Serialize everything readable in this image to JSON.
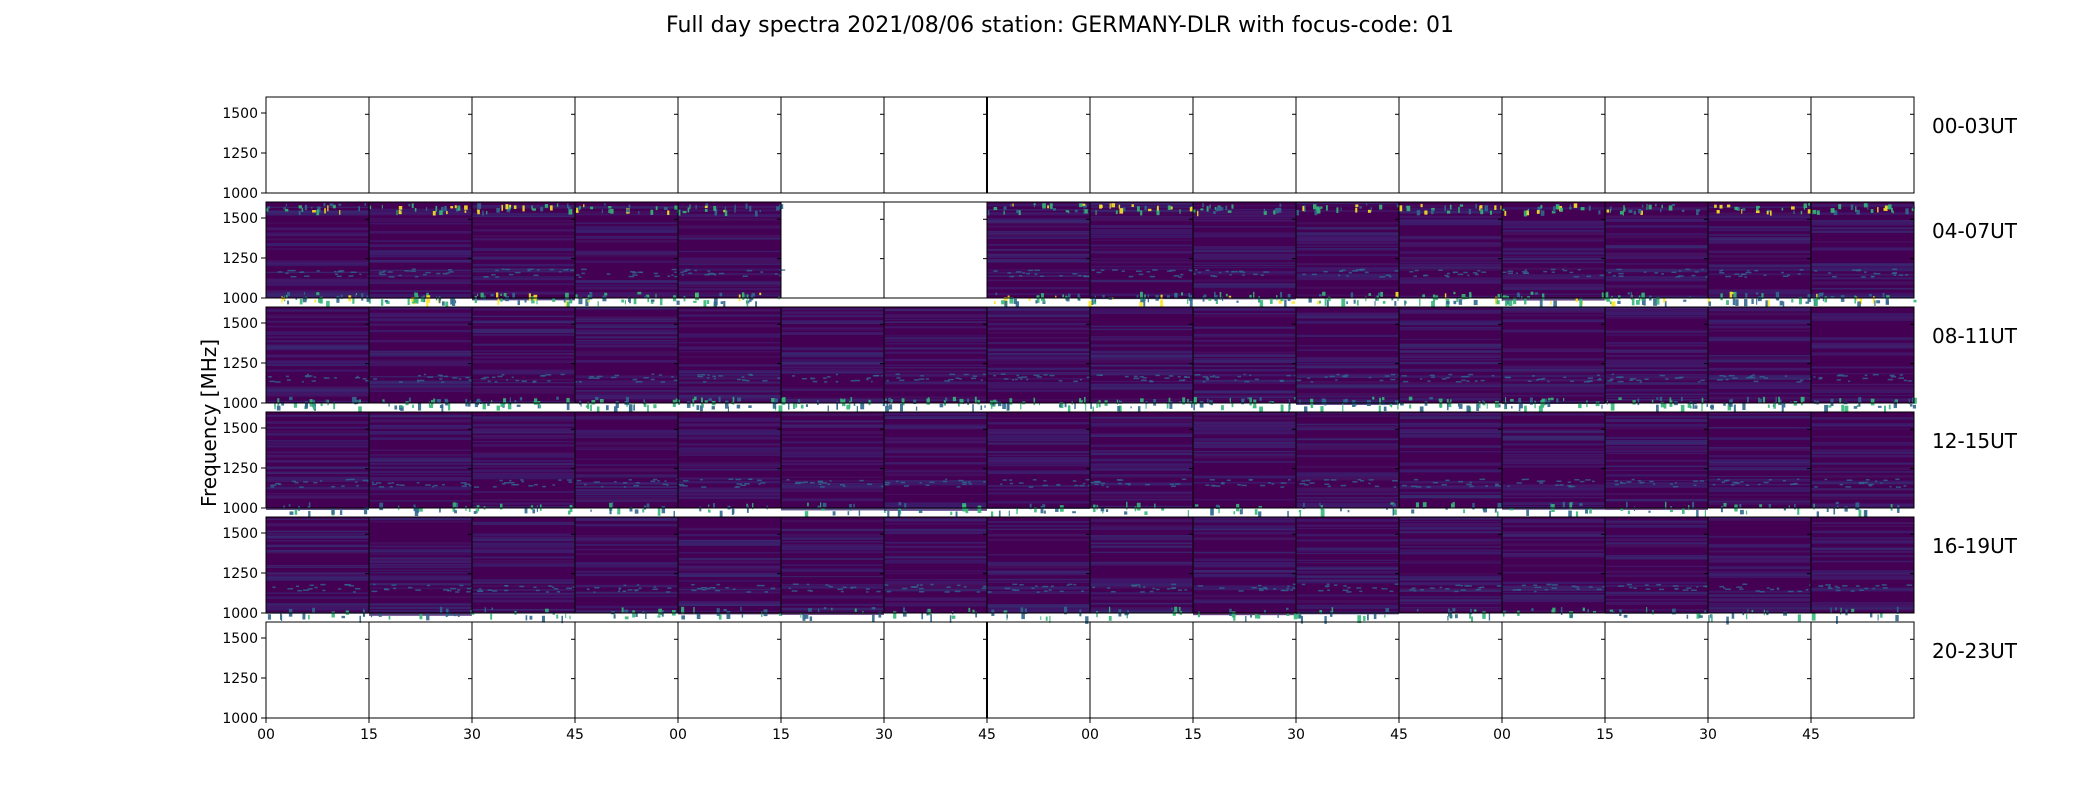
{
  "chart_data": {
    "type": "heatmap",
    "title": "Full day spectra 2021/08/06 station: GERMANY-DLR with focus-code: 01",
    "ylabel": "Frequency [MHz]",
    "xlabel": "",
    "ylim": [
      1000,
      1600
    ],
    "y_ticks": [
      "1000",
      "1250",
      "1500"
    ],
    "y_tick_values": [
      1000,
      1250,
      1500
    ],
    "x_ticks": [
      "00",
      "15",
      "30",
      "45",
      "00",
      "15",
      "30",
      "45",
      "00",
      "15",
      "30",
      "45",
      "00",
      "15",
      "30",
      "45"
    ],
    "panels_per_row": 16,
    "colormap": "viridis",
    "grid": false,
    "rows": [
      {
        "label": "00-03UT",
        "has_data": [
          false,
          false,
          false,
          false,
          false,
          false,
          false,
          false,
          false,
          false,
          false,
          false,
          false,
          false,
          false,
          false
        ]
      },
      {
        "label": "04-07UT",
        "has_data": [
          true,
          true,
          true,
          true,
          true,
          false,
          false,
          true,
          true,
          true,
          true,
          true,
          true,
          true,
          true,
          true
        ]
      },
      {
        "label": "08-11UT",
        "has_data": [
          true,
          true,
          true,
          true,
          true,
          true,
          true,
          true,
          true,
          true,
          true,
          true,
          true,
          true,
          true,
          true
        ]
      },
      {
        "label": "12-15UT",
        "has_data": [
          true,
          true,
          true,
          true,
          true,
          true,
          true,
          true,
          true,
          true,
          true,
          true,
          true,
          true,
          true,
          true
        ]
      },
      {
        "label": "16-19UT",
        "has_data": [
          true,
          true,
          true,
          true,
          true,
          true,
          true,
          true,
          true,
          true,
          true,
          true,
          true,
          true,
          true,
          true
        ]
      },
      {
        "label": "20-23UT",
        "has_data": [
          false,
          false,
          false,
          false,
          false,
          false,
          false,
          false,
          false,
          false,
          false,
          false,
          false,
          false,
          false,
          false
        ]
      }
    ],
    "colors": {
      "background": "#440154",
      "low": "#3b1f6e",
      "mid": "#31688e",
      "high": "#35b779",
      "peak": "#fde725"
    }
  }
}
